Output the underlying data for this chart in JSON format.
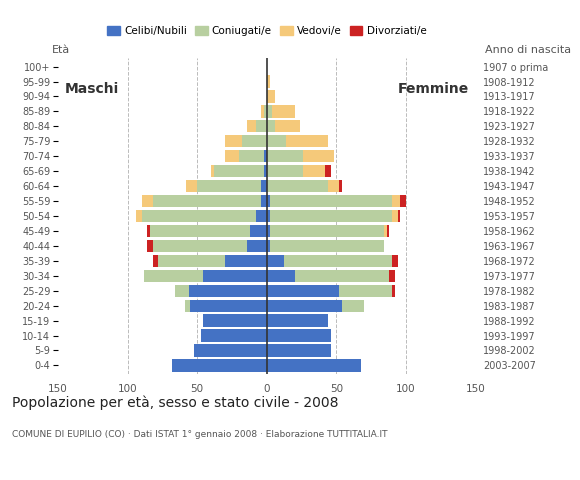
{
  "age_groups": [
    "0-4",
    "5-9",
    "10-14",
    "15-19",
    "20-24",
    "25-29",
    "30-34",
    "35-39",
    "40-44",
    "45-49",
    "50-54",
    "55-59",
    "60-64",
    "65-69",
    "70-74",
    "75-79",
    "80-84",
    "85-89",
    "90-94",
    "95-99",
    "100+"
  ],
  "birth_years": [
    "2003-2007",
    "1998-2002",
    "1993-1997",
    "1988-1992",
    "1983-1987",
    "1978-1982",
    "1973-1977",
    "1968-1972",
    "1963-1967",
    "1958-1962",
    "1953-1957",
    "1948-1952",
    "1943-1947",
    "1938-1942",
    "1933-1937",
    "1928-1932",
    "1923-1927",
    "1918-1922",
    "1913-1917",
    "1908-1912",
    "1907 o prima"
  ],
  "males": {
    "celibe": [
      68,
      52,
      47,
      46,
      55,
      56,
      46,
      30,
      14,
      12,
      8,
      4,
      4,
      2,
      2,
      0,
      0,
      0,
      0,
      0,
      0
    ],
    "coniugato": [
      0,
      0,
      0,
      0,
      4,
      10,
      42,
      48,
      68,
      72,
      82,
      78,
      46,
      36,
      18,
      18,
      8,
      2,
      0,
      0,
      0
    ],
    "vedovo": [
      0,
      0,
      0,
      0,
      0,
      0,
      0,
      0,
      0,
      0,
      4,
      8,
      8,
      2,
      10,
      12,
      6,
      2,
      0,
      0,
      0
    ],
    "divorziato": [
      0,
      0,
      0,
      0,
      0,
      0,
      0,
      4,
      4,
      2,
      0,
      0,
      0,
      0,
      0,
      0,
      0,
      0,
      0,
      0,
      0
    ]
  },
  "females": {
    "nubile": [
      68,
      46,
      46,
      44,
      54,
      52,
      20,
      12,
      2,
      2,
      2,
      2,
      0,
      0,
      0,
      0,
      0,
      0,
      0,
      0,
      0
    ],
    "coniugata": [
      0,
      0,
      0,
      0,
      16,
      38,
      68,
      78,
      82,
      82,
      88,
      88,
      44,
      26,
      26,
      14,
      6,
      4,
      0,
      0,
      0
    ],
    "vedova": [
      0,
      0,
      0,
      0,
      0,
      0,
      0,
      0,
      0,
      2,
      4,
      6,
      8,
      16,
      22,
      30,
      18,
      16,
      6,
      2,
      0
    ],
    "divorziata": [
      0,
      0,
      0,
      0,
      0,
      2,
      4,
      4,
      0,
      2,
      2,
      4,
      2,
      4,
      0,
      0,
      0,
      0,
      0,
      0,
      0
    ]
  },
  "colors": {
    "celibe_nubile": "#4472c4",
    "coniugato_coniugata": "#b8cfa0",
    "vedovo_vedova": "#f5c97a",
    "divorziato_divorziata": "#cc2222"
  },
  "xlim": 150,
  "title": "Popolazione per età, sesso e stato civile - 2008",
  "subtitle": "COMUNE DI EUPILIO (CO) · Dati ISTAT 1° gennaio 2008 · Elaborazione TUTTITALIA.IT",
  "ylabel_left": "Età",
  "ylabel_right": "Anno di nascita",
  "label_maschi": "Maschi",
  "label_femmine": "Femmine",
  "legend_labels": [
    "Celibi/Nubili",
    "Coniugati/e",
    "Vedovi/e",
    "Divorziati/e"
  ],
  "background_color": "#ffffff",
  "grid_color": "#bbbbbb"
}
